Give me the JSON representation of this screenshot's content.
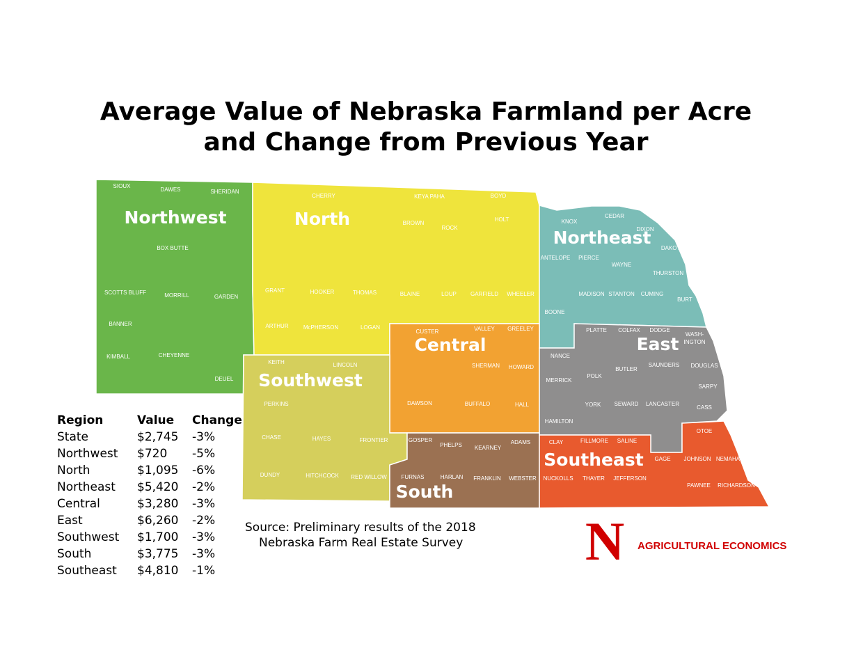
{
  "title": [
    "Average Value of Nebraska Farmland per Acre",
    "and Change from Previous Year"
  ],
  "map": {
    "regions": [
      {
        "name": "Northwest",
        "color": "#6ab64a",
        "counties": [
          "SIOUX",
          "DAWES",
          "SHERIDAN",
          "BOX BUTTE",
          "SCOTTS BLUFF",
          "MORRILL",
          "GARDEN",
          "BANNER",
          "KIMBALL",
          "CHEYENNE",
          "DEUEL"
        ]
      },
      {
        "name": "North",
        "color": "#efe43c",
        "counties": [
          "CHERRY",
          "KEYA PAHA",
          "BOYD",
          "BROWN",
          "ROCK",
          "HOLT",
          "GRANT",
          "HOOKER",
          "THOMAS",
          "BLAINE",
          "LOUP",
          "GARFIELD",
          "WHEELER",
          "ARTHUR",
          "McPHERSON",
          "LOGAN"
        ]
      },
      {
        "name": "Northeast",
        "color": "#7bbdb7",
        "counties": [
          "KNOX",
          "CEDAR",
          "DIXON",
          "DAKOTA",
          "ANTELOPE",
          "PIERCE",
          "WAYNE",
          "THURSTON",
          "MADISON",
          "STANTON",
          "CUMING",
          "BURT",
          "BOONE"
        ]
      },
      {
        "name": "Central",
        "color": "#f2a232",
        "counties": [
          "CUSTER",
          "VALLEY",
          "GREELEY",
          "SHERMAN",
          "HOWARD",
          "DAWSON",
          "BUFFALO",
          "HALL"
        ]
      },
      {
        "name": "East",
        "color": "#8f8e8e",
        "counties": [
          "PLATTE",
          "COLFAX",
          "DODGE",
          "WASH-",
          "INGTON",
          "NANCE",
          "DOUGLAS",
          "SAUNDERS",
          "BUTLER",
          "POLK",
          "MERRICK",
          "SARPY",
          "YORK",
          "SEWARD",
          "LANCASTER",
          "CASS",
          "HAMILTON"
        ]
      },
      {
        "name": "Southwest",
        "color": "#d5cf5c",
        "counties": [
          "KEITH",
          "LINCOLN",
          "PERKINS",
          "CHASE",
          "HAYES",
          "FRONTIER",
          "DUNDY",
          "HITCHCOCK",
          "RED WILLOW"
        ]
      },
      {
        "name": "South",
        "color": "#9b7152",
        "counties": [
          "GOSPER",
          "PHELPS",
          "KEARNEY",
          "ADAMS",
          "FURNAS",
          "HARLAN",
          "FRANKLIN",
          "WEBSTER"
        ]
      },
      {
        "name": "Southeast",
        "color": "#e85a2e",
        "counties": [
          "CLAY",
          "FILLMORE",
          "SALINE",
          "OTOE",
          "GAGE",
          "JOHNSON",
          "NEMAHA",
          "NUCKOLLS",
          "THAYER",
          "JEFFERSON",
          "PAWNEE",
          "RICHARDSON"
        ]
      }
    ]
  },
  "table": {
    "header": [
      "Region",
      "Value",
      "Change"
    ],
    "rows": [
      [
        "State",
        "$2,745",
        "-3%"
      ],
      [
        "Northwest",
        "$720",
        "-5%"
      ],
      [
        "North",
        "$1,095",
        "-6%"
      ],
      [
        "Northeast",
        "$5,420",
        "-2%"
      ],
      [
        "Central",
        "$3,280",
        "-3%"
      ],
      [
        "East",
        "$6,260",
        "-2%"
      ],
      [
        "Southwest",
        "$1,700",
        "-3%"
      ],
      [
        "South",
        "$3,775",
        "-3%"
      ],
      [
        "Southeast",
        "$4,810",
        "-1%"
      ]
    ]
  },
  "source": [
    "Source: Preliminary results of the 2018",
    "Nebraska Farm Real Estate Survey"
  ],
  "logo": {
    "mark": "N",
    "text": "AGRICULTURAL ECONOMICS"
  }
}
